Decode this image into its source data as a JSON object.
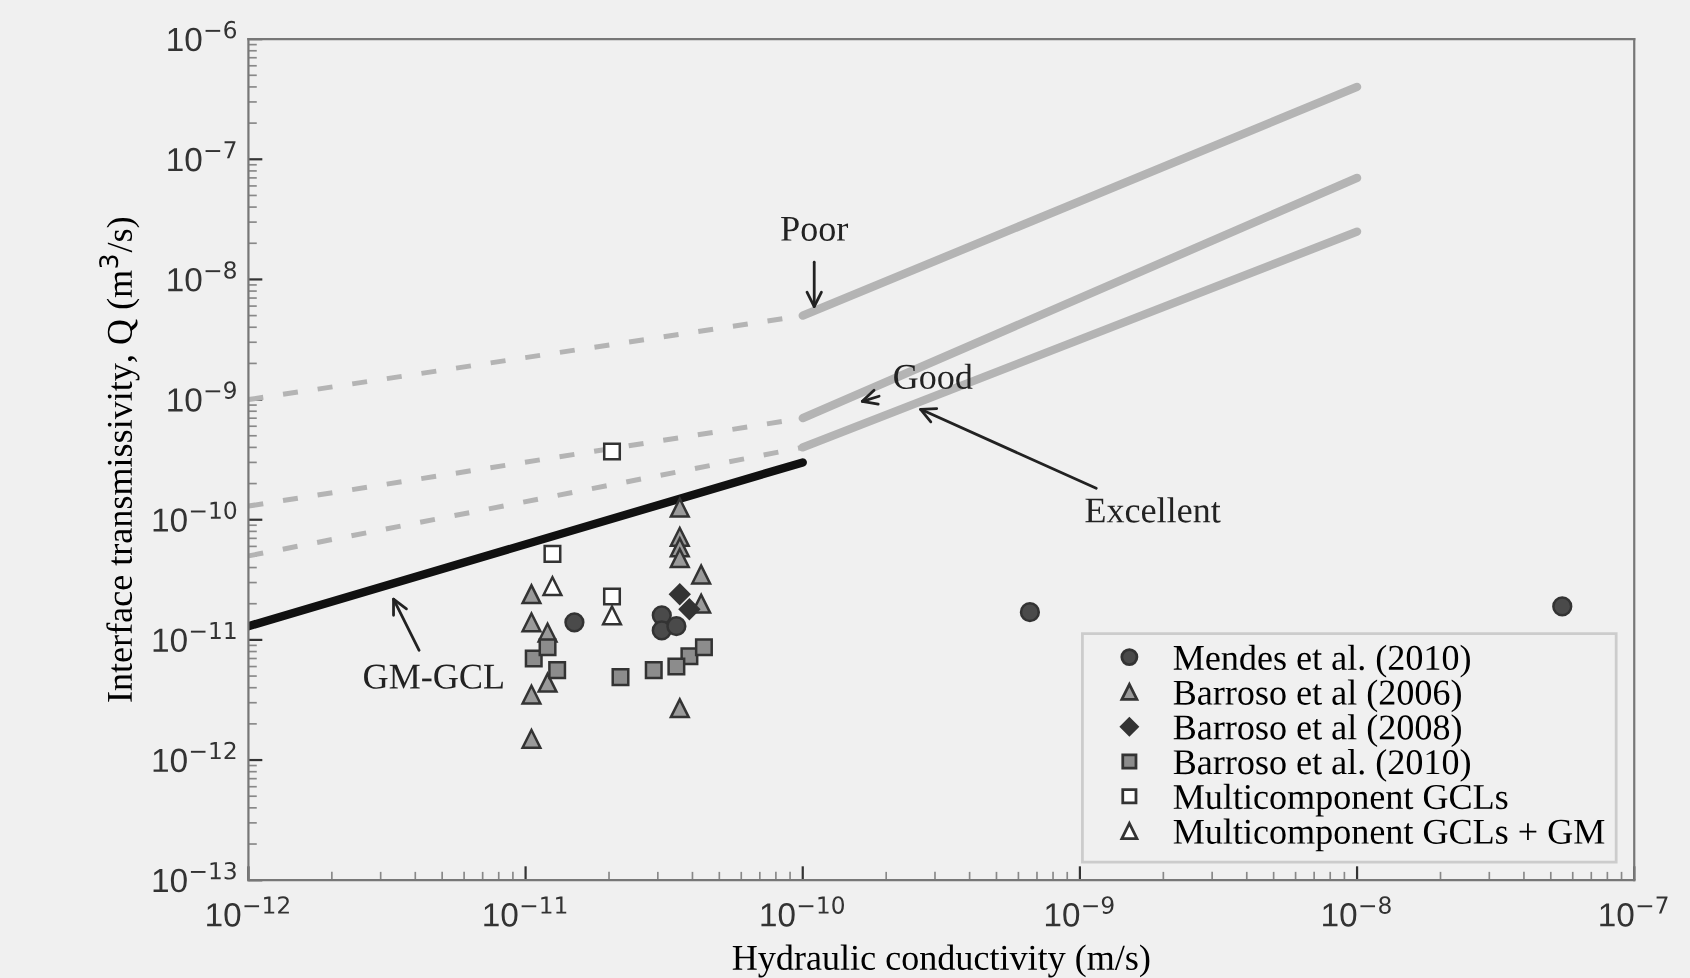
{
  "chart_data": {
    "type": "scatter",
    "xlabel": "Hydraulic conductivity (m/s)",
    "ylabel": "Interface transmissivity, Q (m$^{3}$/s)",
    "log": "xy",
    "xlim": [
      1e-12,
      1e-07
    ],
    "ylim": [
      1e-13,
      1e-06
    ],
    "xticks": [
      {
        "value": 1e-12,
        "label": "10$^{−12}$"
      },
      {
        "value": 1e-11,
        "label": "10$^{−11}$"
      },
      {
        "value": 1e-10,
        "label": "10$^{−10}$"
      },
      {
        "value": 1e-09,
        "label": "10$^{−9}$"
      },
      {
        "value": 1e-08,
        "label": "10$^{−8}$"
      },
      {
        "value": 1e-07,
        "label": "10$^{−7}$"
      }
    ],
    "yticks": [
      {
        "value": 1e-13,
        "label": "10$^{−13}$"
      },
      {
        "value": 1e-12,
        "label": "10$^{−12}$"
      },
      {
        "value": 1e-11,
        "label": "10$^{−11}$"
      },
      {
        "value": 1e-10,
        "label": "10$^{−10}$"
      },
      {
        "value": 1e-09,
        "label": "10$^{−9}$"
      },
      {
        "value": 1e-08,
        "label": "10$^{−8}$"
      },
      {
        "value": 1e-07,
        "label": "10$^{−7}$"
      },
      {
        "value": 1e-06,
        "label": "10$^{−6}$"
      }
    ],
    "grid": false,
    "legend": "bottom right",
    "series": [
      {
        "type": "line",
        "line_style": "dashed",
        "color": "#b4b4b4",
        "x": [
          1e-12,
          1e-10
        ],
        "values": [
          1e-09,
          5e-09
        ]
      },
      {
        "type": "line",
        "line_style": "solid",
        "color": "#b4b4b4",
        "x": [
          1e-10,
          1e-08
        ],
        "values": [
          5e-09,
          4e-07
        ]
      },
      {
        "type": "line",
        "line_style": "dashed",
        "color": "#b4b4b4",
        "x": [
          1e-12,
          1e-10
        ],
        "values": [
          1.3e-10,
          7e-10
        ]
      },
      {
        "type": "line",
        "line_style": "solid",
        "color": "#b4b4b4",
        "x": [
          1e-10,
          1e-08
        ],
        "values": [
          7e-10,
          7e-08
        ]
      },
      {
        "type": "line",
        "line_style": "dashed",
        "color": "#b4b4b4",
        "x": [
          1e-12,
          1e-10
        ],
        "values": [
          5e-11,
          4e-10
        ]
      },
      {
        "type": "line",
        "line_style": "solid",
        "color": "#b4b4b4",
        "x": [
          1e-10,
          1e-08
        ],
        "values": [
          4e-10,
          2.5e-08
        ]
      },
      {
        "type": "line",
        "line_style": "solid",
        "color": "#111111",
        "x": [
          1e-12,
          1e-10
        ],
        "values": [
          1.3e-11,
          3e-10
        ]
      },
      {
        "name": "Mendes et al. (2010)",
        "marker": "circle",
        "color": "#4a4a4a",
        "x": [
          1.5e-11,
          3.1e-11,
          3.1e-11,
          3.5e-11,
          6.6e-10,
          5.5e-08
        ],
        "values": [
          1.4e-11,
          1.6e-11,
          1.2e-11,
          1.3e-11,
          1.7e-11,
          1.9e-11
        ]
      },
      {
        "name": "Barroso et al (2006)",
        "marker": "triangle",
        "color": "#9a9a9a",
        "x": [
          1.05e-11,
          1.05e-11,
          1.2e-11,
          1.2e-11,
          1.05e-11,
          1.05e-11,
          3.6e-11,
          3.6e-11,
          3.6e-11,
          3.6e-11,
          4.3e-11,
          4.3e-11,
          3.6e-11
        ],
        "values": [
          2.4e-11,
          1.4e-11,
          1.15e-11,
          4.4e-12,
          3.5e-12,
          1.5e-12,
          1.26e-10,
          7.2e-11,
          5.9e-11,
          4.8e-11,
          3.5e-11,
          2e-11,
          2.7e-12
        ]
      },
      {
        "name": "Barroso et al (2008)",
        "marker": "diamond",
        "color": "#333333",
        "x": [
          3.6e-11,
          3.9e-11
        ],
        "values": [
          2.4e-11,
          1.8e-11
        ]
      },
      {
        "name": "Barroso et al. (2010)",
        "marker": "square",
        "color": "#8c8c8c",
        "x": [
          1.07e-11,
          1.2e-11,
          1.3e-11,
          2.2e-11,
          2.9e-11,
          3.9e-11,
          4.4e-11,
          3.5e-11
        ],
        "values": [
          7e-12,
          8.7e-12,
          5.6e-12,
          4.9e-12,
          5.6e-12,
          7.3e-12,
          8.7e-12,
          6e-12
        ]
      },
      {
        "name": "Multicomponent GCLs",
        "marker": "square",
        "color": "#ffffff",
        "x": [
          2.05e-11,
          1.25e-11,
          2.05e-11
        ],
        "values": [
          3.7e-10,
          5.2e-11,
          2.3e-11
        ]
      },
      {
        "name": "Multicomponent GCLs + GM",
        "marker": "triangle",
        "color": "#ffffff",
        "x": [
          1.25e-11,
          2.05e-11
        ],
        "values": [
          2.8e-11,
          1.6e-11
        ]
      }
    ],
    "annotations": [
      {
        "text": "Poor",
        "x": 1.1e-10,
        "y": 5.6e-09
      },
      {
        "text": "Good",
        "x": 1.6e-10,
        "y": 9.5e-10
      },
      {
        "text": "Excellent",
        "x": 2.6e-10,
        "y": 8.5e-10
      },
      {
        "text": "GM-GCL",
        "x": 3.3e-12,
        "y": 2.3e-11
      }
    ]
  }
}
